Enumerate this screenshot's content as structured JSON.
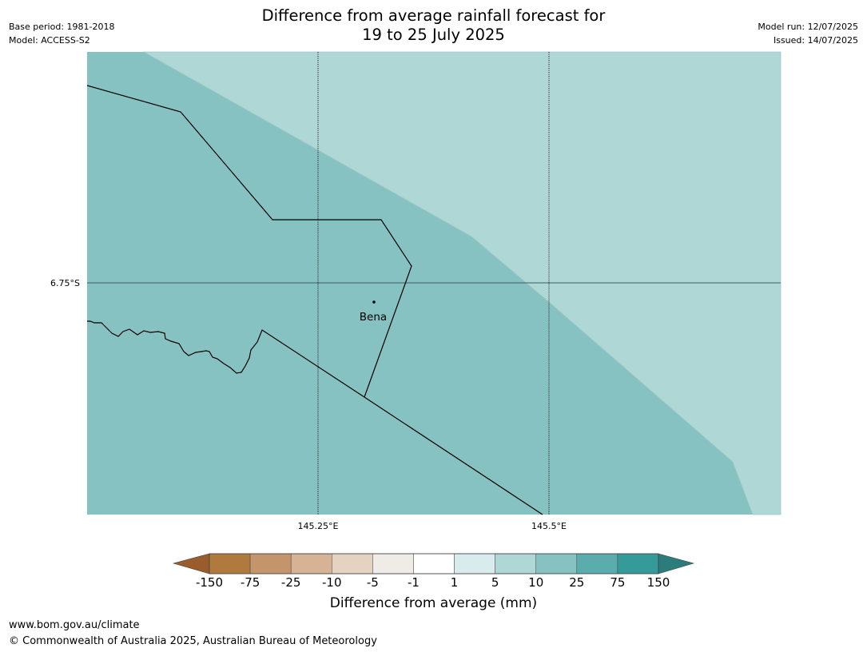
{
  "title": {
    "line1": "Difference from average rainfall forecast for",
    "line2": "19 to 25 July 2025"
  },
  "meta_left": {
    "base_period": "Base period: 1981-2018",
    "model": "Model: ACCESS-S2"
  },
  "meta_right": {
    "model_run": "Model run: 12/07/2025",
    "issued": "Issued: 14/07/2025"
  },
  "map": {
    "lat_labels": [
      "6.75°S"
    ],
    "lon_labels": [
      "145.25°E",
      "145.5°E"
    ],
    "town": {
      "name": "Bena"
    },
    "fill_categories": [
      "5 to 10",
      "10 to 25"
    ]
  },
  "colorbar": {
    "title": "Difference from average (mm)",
    "tick_labels": [
      "-150",
      "-75",
      "-25",
      "-10",
      "-5",
      "-1",
      "1",
      "5",
      "10",
      "25",
      "75",
      "150"
    ],
    "colors": [
      "#9a5c2b",
      "#b07a3e",
      "#c4956a",
      "#d5b394",
      "#e6d2c0",
      "#efebe7",
      "#ffffff",
      "#d9eced",
      "#aed7d6",
      "#86c2c1",
      "#5bacad",
      "#359b9a",
      "#2b7c7a"
    ]
  },
  "footer": {
    "url": "www.bom.gov.au/climate",
    "copyright": "© Commonwealth of Australia 2025, Australian Bureau of Meteorology"
  }
}
